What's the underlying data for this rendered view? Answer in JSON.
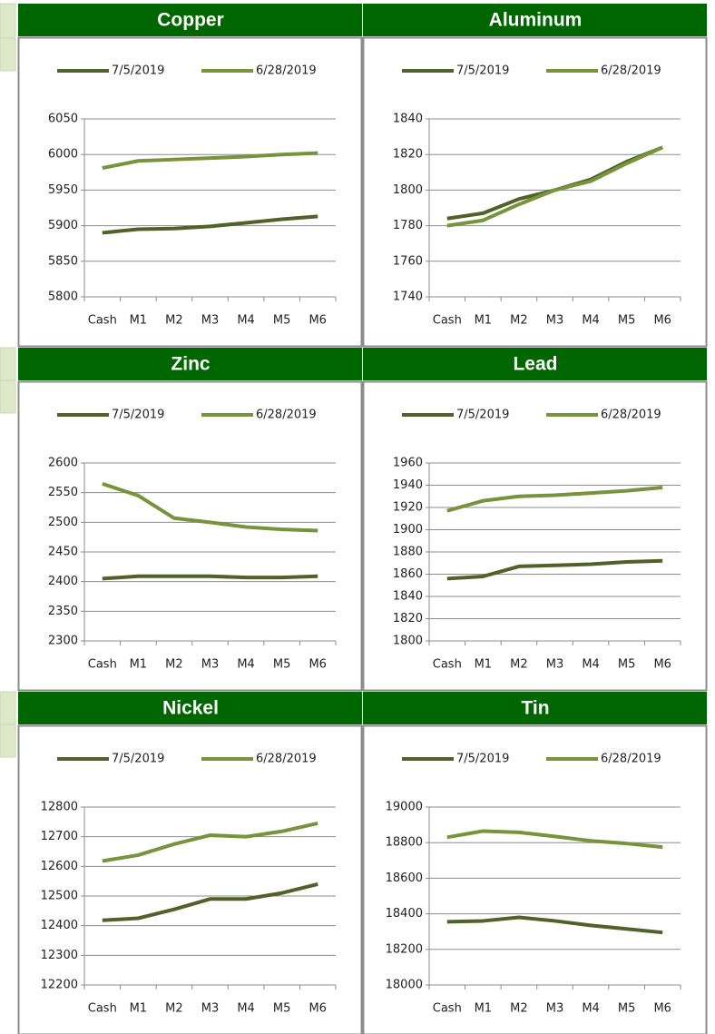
{
  "chart_data": [
    {
      "type": "line",
      "title": "Copper",
      "categories": [
        "Cash",
        "M1",
        "M2",
        "M3",
        "M4",
        "M5",
        "M6"
      ],
      "series": [
        {
          "name": "7/5/2019",
          "color": "#4f6228",
          "values": [
            5890,
            5895,
            5896,
            5899,
            5904,
            5909,
            5913
          ]
        },
        {
          "name": "6/28/2019",
          "color": "#77933c",
          "values": [
            5981,
            5991,
            5993,
            5995,
            5997,
            6000,
            6002
          ]
        }
      ],
      "ylim": [
        5800,
        6050
      ],
      "yticks": [
        5800,
        5850,
        5900,
        5950,
        6000,
        6050
      ],
      "grid": true
    },
    {
      "type": "line",
      "title": "Aluminum",
      "categories": [
        "Cash",
        "M1",
        "M2",
        "M3",
        "M4",
        "M5",
        "M6"
      ],
      "series": [
        {
          "name": "7/5/2019",
          "color": "#4f6228",
          "values": [
            1784,
            1787,
            1795,
            1800,
            1806,
            1816,
            1824
          ]
        },
        {
          "name": "6/28/2019",
          "color": "#77933c",
          "values": [
            1780,
            1783,
            1792,
            1800,
            1805,
            1815,
            1824
          ]
        }
      ],
      "ylim": [
        1740,
        1840
      ],
      "yticks": [
        1740,
        1760,
        1780,
        1800,
        1820,
        1840
      ],
      "grid": true
    },
    {
      "type": "line",
      "title": "Zinc",
      "categories": [
        "Cash",
        "M1",
        "M2",
        "M3",
        "M4",
        "M5",
        "M6"
      ],
      "series": [
        {
          "name": "7/5/2019",
          "color": "#4f6228",
          "values": [
            2405,
            2409,
            2409,
            2409,
            2407,
            2407,
            2409
          ]
        },
        {
          "name": "6/28/2019",
          "color": "#77933c",
          "values": [
            2565,
            2545,
            2507,
            2500,
            2492,
            2488,
            2486
          ]
        }
      ],
      "ylim": [
        2300,
        2600
      ],
      "yticks": [
        2300,
        2350,
        2400,
        2450,
        2500,
        2550,
        2600
      ],
      "grid": true
    },
    {
      "type": "line",
      "title": "Lead",
      "categories": [
        "Cash",
        "M1",
        "M2",
        "M3",
        "M4",
        "M5",
        "M6"
      ],
      "series": [
        {
          "name": "7/5/2019",
          "color": "#4f6228",
          "values": [
            1856,
            1858,
            1867,
            1868,
            1869,
            1871,
            1872
          ]
        },
        {
          "name": "6/28/2019",
          "color": "#77933c",
          "values": [
            1917,
            1926,
            1930,
            1931,
            1933,
            1935,
            1938
          ]
        }
      ],
      "ylim": [
        1800,
        1960
      ],
      "yticks": [
        1800,
        1820,
        1840,
        1860,
        1880,
        1900,
        1920,
        1940,
        1960
      ],
      "grid": true
    },
    {
      "type": "line",
      "title": "Nickel",
      "categories": [
        "Cash",
        "M1",
        "M2",
        "M3",
        "M4",
        "M5",
        "M6"
      ],
      "series": [
        {
          "name": "7/5/2019",
          "color": "#4f6228",
          "values": [
            12418,
            12425,
            12455,
            12490,
            12490,
            12510,
            12540
          ]
        },
        {
          "name": "6/28/2019",
          "color": "#77933c",
          "values": [
            12618,
            12638,
            12675,
            12705,
            12700,
            12718,
            12745
          ]
        }
      ],
      "ylim": [
        12200,
        12800
      ],
      "yticks": [
        12200,
        12300,
        12400,
        12500,
        12600,
        12700,
        12800
      ],
      "grid": true
    },
    {
      "type": "line",
      "title": "Tin",
      "categories": [
        "Cash",
        "M1",
        "M2",
        "M3",
        "M4",
        "M5",
        "M6"
      ],
      "series": [
        {
          "name": "7/5/2019",
          "color": "#4f6228",
          "values": [
            18355,
            18360,
            18380,
            18360,
            18335,
            18315,
            18295
          ]
        },
        {
          "name": "6/28/2019",
          "color": "#77933c",
          "values": [
            18830,
            18865,
            18858,
            18835,
            18810,
            18795,
            18775
          ]
        }
      ],
      "ylim": [
        18000,
        19000
      ],
      "yticks": [
        18000,
        18200,
        18400,
        18600,
        18800,
        19000
      ],
      "grid": true
    }
  ]
}
